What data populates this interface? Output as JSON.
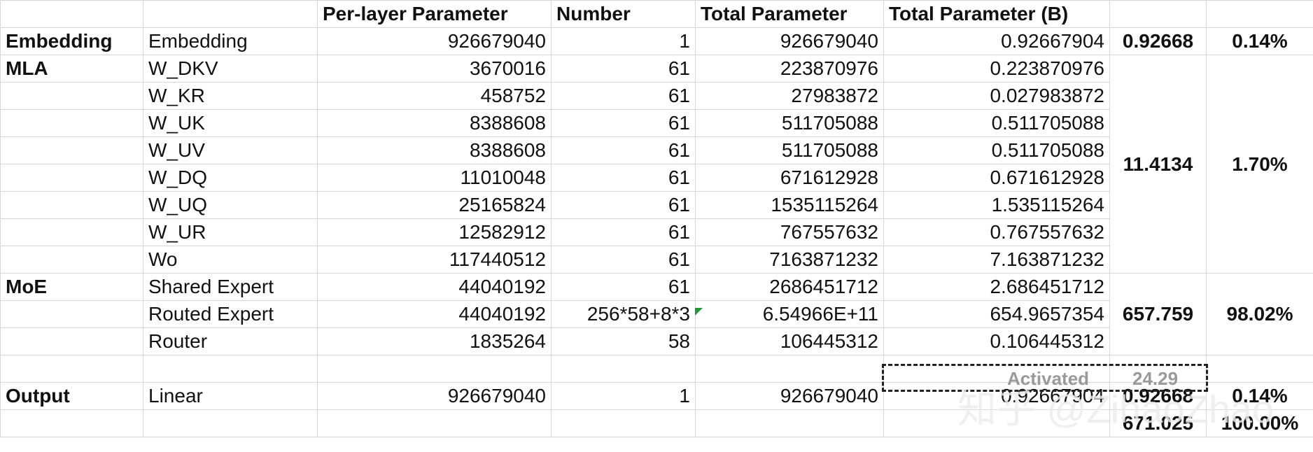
{
  "header": [
    "",
    "",
    "Per-layer Parameter",
    "Number",
    "Total Parameter",
    "Total Parameter (B)",
    "",
    ""
  ],
  "rows": [
    {
      "group": "Embedding",
      "name": "Embedding",
      "per_layer": "926679040",
      "number": "1",
      "total": "926679040",
      "total_b": "0.92667904"
    },
    {
      "group": "MLA",
      "name": "W_DKV",
      "per_layer": "3670016",
      "number": "61",
      "total": "223870976",
      "total_b": "0.223870976"
    },
    {
      "group": "",
      "name": "W_KR",
      "per_layer": "458752",
      "number": "61",
      "total": "27983872",
      "total_b": "0.027983872"
    },
    {
      "group": "",
      "name": "W_UK",
      "per_layer": "8388608",
      "number": "61",
      "total": "511705088",
      "total_b": "0.511705088"
    },
    {
      "group": "",
      "name": "W_UV",
      "per_layer": "8388608",
      "number": "61",
      "total": "511705088",
      "total_b": "0.511705088"
    },
    {
      "group": "",
      "name": "W_DQ",
      "per_layer": "11010048",
      "number": "61",
      "total": "671612928",
      "total_b": "0.671612928"
    },
    {
      "group": "",
      "name": "W_UQ",
      "per_layer": "25165824",
      "number": "61",
      "total": "1535115264",
      "total_b": "1.535115264"
    },
    {
      "group": "",
      "name": "W_UR",
      "per_layer": "12582912",
      "number": "61",
      "total": "767557632",
      "total_b": "0.767557632"
    },
    {
      "group": "",
      "name": "Wo",
      "per_layer": "117440512",
      "number": "61",
      "total": "7163871232",
      "total_b": "7.163871232"
    },
    {
      "group": "MoE",
      "name": "Shared Expert",
      "per_layer": "44040192",
      "number": "61",
      "total": "2686451712",
      "total_b": "2.686451712"
    },
    {
      "group": "",
      "name": "Routed Expert",
      "per_layer": "44040192",
      "number": "256*58+8*3",
      "total": "6.54966E+11",
      "total_b": "654.9657354"
    },
    {
      "group": "",
      "name": "Router",
      "per_layer": "1835264",
      "number": "58",
      "total": "106445312",
      "total_b": "0.106445312"
    },
    {
      "group": "",
      "name": "",
      "per_layer": "",
      "number": "",
      "total": "",
      "total_b": ""
    },
    {
      "group": "Output",
      "name": "Linear",
      "per_layer": "926679040",
      "number": "1",
      "total": "926679040",
      "total_b": "0.92667904"
    },
    {
      "group": "",
      "name": "",
      "per_layer": "",
      "number": "",
      "total": "",
      "total_b": ""
    }
  ],
  "summaries": {
    "embedding": {
      "value": "0.92668",
      "pct": "0.14%"
    },
    "mla": {
      "value": "11.4134",
      "pct": "1.70%"
    },
    "moe": {
      "value": "657.759",
      "pct": "98.02%"
    },
    "output": {
      "value": "0.92668",
      "pct": "0.14%"
    },
    "total": {
      "value": "671.025",
      "pct": "100.00%"
    }
  },
  "activated": {
    "label": "Activated",
    "value": "24.29"
  },
  "watermark": "知乎 @ZihaoZhao"
}
